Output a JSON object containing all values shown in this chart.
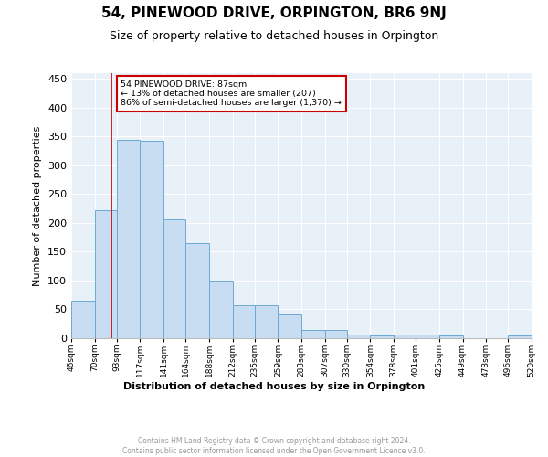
{
  "title": "54, PINEWOOD DRIVE, ORPINGTON, BR6 9NJ",
  "subtitle": "Size of property relative to detached houses in Orpington",
  "xlabel": "Distribution of detached houses by size in Orpington",
  "ylabel": "Number of detached properties",
  "bar_color": "#c9ddf2",
  "bar_edge_color": "#6aaad4",
  "background_color": "#e8f0f8",
  "grid_color": "#ffffff",
  "annotation_box_color": "#cc0000",
  "annotation_text": "54 PINEWOOD DRIVE: 87sqm\n← 13% of detached houses are smaller (207)\n86% of semi-detached houses are larger (1,370) →",
  "property_line_x": 87,
  "property_line_color": "#cc0000",
  "bin_edges": [
    46,
    70,
    93,
    117,
    141,
    164,
    188,
    212,
    235,
    259,
    283,
    307,
    330,
    354,
    378,
    401,
    425,
    449,
    473,
    496,
    520
  ],
  "bin_labels": [
    "46sqm",
    "70sqm",
    "93sqm",
    "117sqm",
    "141sqm",
    "164sqm",
    "188sqm",
    "212sqm",
    "235sqm",
    "259sqm",
    "283sqm",
    "307sqm",
    "330sqm",
    "354sqm",
    "378sqm",
    "401sqm",
    "425sqm",
    "449sqm",
    "473sqm",
    "496sqm",
    "520sqm"
  ],
  "counts": [
    65,
    222,
    345,
    342,
    207,
    165,
    100,
    57,
    57,
    41,
    15,
    15,
    7,
    5,
    7,
    7,
    5,
    0,
    0,
    5
  ],
  "ylim": [
    0,
    460
  ],
  "yticks": [
    0,
    50,
    100,
    150,
    200,
    250,
    300,
    350,
    400,
    450
  ],
  "footer_text": "Contains HM Land Registry data © Crown copyright and database right 2024.\nContains public sector information licensed under the Open Government Licence v3.0."
}
